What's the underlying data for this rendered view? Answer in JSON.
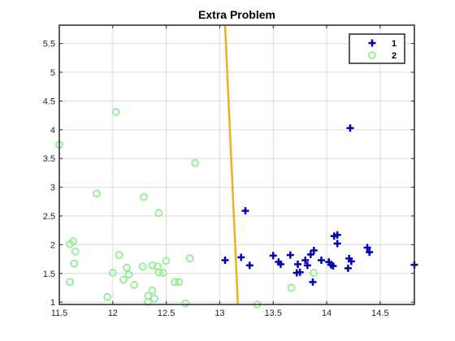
{
  "chart_data": {
    "type": "scatter",
    "title": "Extra Problem",
    "xlabel": "",
    "ylabel": "",
    "xlim": [
      11.5,
      14.82
    ],
    "ylim": [
      0.96,
      5.82
    ],
    "xticks": [
      11.5,
      12,
      12.5,
      13,
      13.5,
      14,
      14.5
    ],
    "xtick_labels": [
      "11.5",
      "12",
      "12.5",
      "13",
      "13.5",
      "14",
      "14.5"
    ],
    "yticks": [
      1,
      1.5,
      2,
      2.5,
      3,
      3.5,
      4,
      4.5,
      5,
      5.5
    ],
    "ytick_labels": [
      "1",
      "1.5",
      "2",
      "2.5",
      "3",
      "3.5",
      "4",
      "4.5",
      "5",
      "5.5"
    ],
    "grid": true,
    "legend_position": "top-right",
    "series": [
      {
        "name": "1",
        "marker": "plus",
        "color": "#0000b4",
        "points": [
          [
            13.05,
            1.73
          ],
          [
            13.2,
            1.78
          ],
          [
            13.24,
            2.59
          ],
          [
            13.28,
            1.64
          ],
          [
            13.5,
            1.81
          ],
          [
            13.55,
            1.7
          ],
          [
            13.57,
            1.66
          ],
          [
            13.66,
            1.82
          ],
          [
            13.72,
            1.51
          ],
          [
            13.73,
            1.66
          ],
          [
            13.75,
            1.52
          ],
          [
            13.8,
            1.73
          ],
          [
            13.82,
            1.64
          ],
          [
            13.85,
            1.83
          ],
          [
            13.87,
            1.35
          ],
          [
            13.88,
            1.9
          ],
          [
            13.95,
            1.73
          ],
          [
            14.02,
            1.7
          ],
          [
            14.04,
            1.65
          ],
          [
            14.06,
            1.63
          ],
          [
            14.07,
            2.15
          ],
          [
            14.1,
            2.17
          ],
          [
            14.1,
            2.02
          ],
          [
            14.2,
            1.59
          ],
          [
            14.21,
            1.76
          ],
          [
            14.22,
            4.03
          ],
          [
            14.23,
            1.71
          ],
          [
            14.38,
            1.95
          ],
          [
            14.4,
            1.87
          ],
          [
            14.82,
            1.65
          ]
        ]
      },
      {
        "name": "2",
        "marker": "circle",
        "color": "#90ee90",
        "points": [
          [
            11.5,
            3.74
          ],
          [
            11.6,
            2.01
          ],
          [
            11.6,
            1.35
          ],
          [
            11.63,
            2.06
          ],
          [
            11.64,
            1.67
          ],
          [
            11.65,
            1.88
          ],
          [
            11.85,
            2.89
          ],
          [
            11.95,
            1.09
          ],
          [
            12.0,
            1.51
          ],
          [
            12.03,
            4.31
          ],
          [
            12.06,
            1.82
          ],
          [
            12.1,
            1.39
          ],
          [
            12.13,
            1.6
          ],
          [
            12.15,
            1.48
          ],
          [
            12.2,
            1.3
          ],
          [
            12.28,
            1.62
          ],
          [
            12.29,
            2.83
          ],
          [
            12.33,
            1.0
          ],
          [
            12.33,
            1.11
          ],
          [
            12.37,
            1.64
          ],
          [
            12.37,
            1.2
          ],
          [
            12.39,
            1.06
          ],
          [
            12.42,
            1.62
          ],
          [
            12.43,
            2.55
          ],
          [
            12.43,
            1.52
          ],
          [
            12.47,
            1.51
          ],
          [
            12.5,
            1.72
          ],
          [
            12.58,
            1.35
          ],
          [
            12.62,
            1.35
          ],
          [
            12.68,
            0.98
          ],
          [
            12.72,
            1.76
          ],
          [
            12.77,
            3.42
          ],
          [
            13.35,
            0.96
          ],
          [
            13.67,
            1.25
          ],
          [
            13.88,
            1.51
          ]
        ]
      }
    ],
    "lines": [
      {
        "name": "decision-boundary",
        "color": "#edb120",
        "x": [
          13.05,
          13.17
        ],
        "y": [
          5.82,
          0.96
        ]
      }
    ]
  }
}
